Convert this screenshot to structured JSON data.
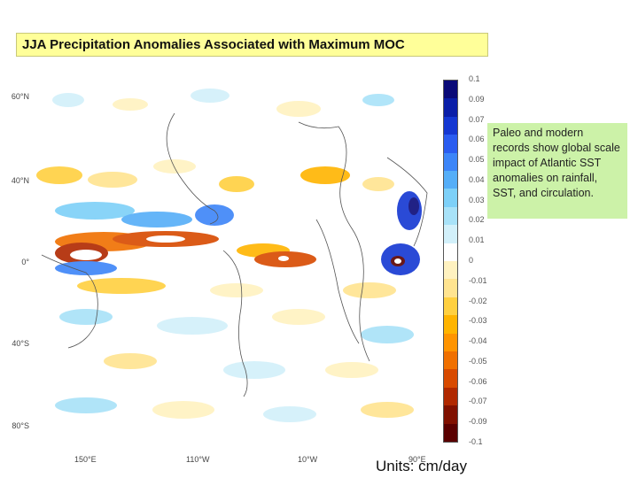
{
  "title": "JJA Precipitation Anomalies Associated with Maximum MOC",
  "note": "Paleo and  modern records show global scale impact of Atlantic SST anomalies on rainfall, SST, and circulation.",
  "units": "Units: cm/day",
  "map": {
    "lat_ticks": [
      "60°N",
      "40°N",
      "0°",
      "40°S",
      "80°S"
    ],
    "lon_ticks": [
      "150°E",
      "110°W",
      "10°W",
      "90°E"
    ]
  },
  "colorbar": {
    "labels": [
      "0.1",
      "0.09",
      "0.07",
      "0.06",
      "0.05",
      "0.04",
      "0.03",
      "0.02",
      "0.01",
      "0",
      "-0.01",
      "-0.02",
      "-0.03",
      "-0.04",
      "-0.05",
      "-0.06",
      "-0.07",
      "-0.09",
      "-0.1"
    ],
    "colors": [
      "#0a0a78",
      "#0a1ea8",
      "#1437d2",
      "#2a5cf0",
      "#3c85f8",
      "#55aef8",
      "#7dd0f8",
      "#a8e2f8",
      "#d2f0fa",
      "#ffffff",
      "#fff2c0",
      "#ffe490",
      "#ffd040",
      "#ffb400",
      "#ff9400",
      "#f07000",
      "#d84a00",
      "#b02800",
      "#801000",
      "#5a0000"
    ]
  }
}
